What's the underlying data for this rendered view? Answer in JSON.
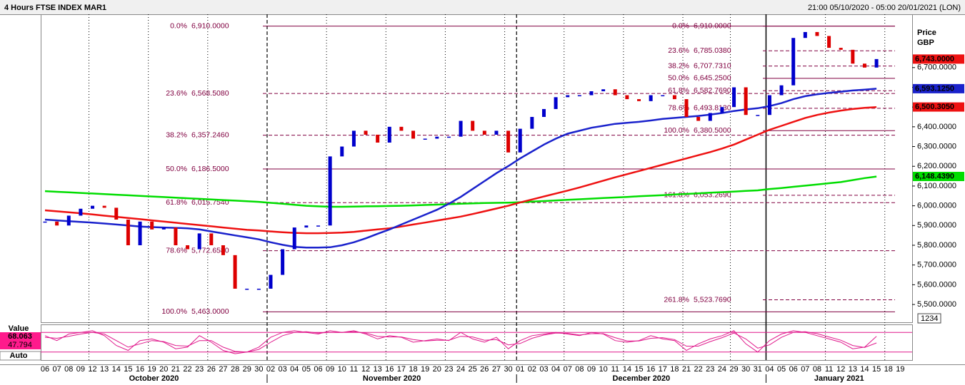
{
  "chart_data": {
    "type": "candlestick",
    "title": "4 Hours FTSE INDEX MAR1",
    "subtitle": "21:00 05/10/2020 - 05:00 20/01/2021 (LON)",
    "ylabel": [
      "Price",
      "GBP"
    ],
    "categories": [
      "06",
      "07",
      "08",
      "09",
      "12",
      "13",
      "14",
      "15",
      "16",
      "19",
      "20",
      "21",
      "22",
      "23",
      "26",
      "27",
      "28",
      "29",
      "30",
      "02",
      "03",
      "04",
      "05",
      "06",
      "09",
      "10",
      "11",
      "12",
      "13",
      "16",
      "17",
      "18",
      "19",
      "20",
      "23",
      "24",
      "25",
      "26",
      "27",
      "30",
      "01",
      "02",
      "03",
      "04",
      "07",
      "08",
      "09",
      "10",
      "11",
      "14",
      "15",
      "16",
      "17",
      "18",
      "21",
      "22",
      "23",
      "24",
      "29",
      "30",
      "31",
      "04",
      "05",
      "06",
      "07",
      "08",
      "11",
      "12",
      "13",
      "14",
      "15",
      "18",
      "19"
    ],
    "months": [
      "October 2020",
      "November 2020",
      "December 2020",
      "January 2021"
    ],
    "values": [
      5920,
      5900,
      5950,
      5985,
      6000,
      5990,
      5930,
      5800,
      5920,
      5880,
      5890,
      5800,
      5780,
      5860,
      5800,
      5750,
      5580,
      5580,
      5580,
      5650,
      5780,
      5890,
      5900,
      5900,
      6250,
      6300,
      6380,
      6360,
      6320,
      6400,
      6380,
      6340,
      6340,
      6350,
      6350,
      6430,
      6380,
      6360,
      6380,
      6270,
      6390,
      6450,
      6490,
      6550,
      6560,
      6560,
      6580,
      6590,
      6560,
      6540,
      6530,
      6560,
      6560,
      6540,
      6450,
      6430,
      6470,
      6500,
      6600,
      6460,
      6460,
      6560,
      6610,
      6850,
      6880,
      6860,
      6800,
      6790,
      6720,
      6700,
      6743,
      null,
      null
    ],
    "up_color": "#0000cc",
    "down_color": "#dd0000",
    "moving_averages": [
      {
        "color": "#00dd00",
        "values": [
          6074,
          6071,
          6068,
          6065,
          6062,
          6059,
          6056,
          6053,
          6050,
          6047,
          6044,
          6041,
          6038,
          6035,
          6032,
          6029,
          6026,
          6023,
          6020,
          6015,
          6010,
          6005,
          6000,
          5997,
          5995,
          5995,
          5996,
          5997,
          5998,
          5999,
          6000,
          6002,
          6004,
          6006,
          6008,
          6010,
          6012,
          6014,
          6015,
          6016,
          6018,
          6021,
          6024,
          6027,
          6030,
          6033,
          6036,
          6039,
          6042,
          6045,
          6048,
          6051,
          6054,
          6057,
          6060,
          6063,
          6066,
          6069,
          6072,
          6075,
          6078,
          6085,
          6090,
          6096,
          6102,
          6108,
          6114,
          6120,
          6130,
          6140,
          6148,
          null,
          null
        ]
      },
      {
        "color": "#ee1111",
        "values": [
          5977,
          5972,
          5967,
          5962,
          5956,
          5950,
          5944,
          5938,
          5932,
          5926,
          5920,
          5914,
          5908,
          5902,
          5896,
          5890,
          5884,
          5878,
          5875,
          5870,
          5866,
          5863,
          5861,
          5861,
          5862,
          5864,
          5868,
          5874,
          5880,
          5886,
          5895,
          5905,
          5915,
          5925,
          5935,
          5945,
          5958,
          5972,
          5986,
          6000,
          6017,
          6032,
          6047,
          6062,
          6077,
          6093,
          6110,
          6127,
          6144,
          6160,
          6176,
          6192,
          6208,
          6224,
          6240,
          6256,
          6272,
          6290,
          6310,
          6335,
          6360,
          6385,
          6405,
          6425,
          6445,
          6460,
          6472,
          6482,
          6490,
          6496,
          6500,
          null,
          null
        ]
      },
      {
        "color": "#1a22cc",
        "values": [
          5930,
          5926,
          5922,
          5918,
          5915,
          5910,
          5905,
          5900,
          5895,
          5892,
          5890,
          5888,
          5886,
          5880,
          5870,
          5860,
          5850,
          5840,
          5830,
          5815,
          5802,
          5792,
          5788,
          5788,
          5790,
          5800,
          5815,
          5835,
          5858,
          5880,
          5905,
          5930,
          5955,
          5980,
          6010,
          6045,
          6085,
          6125,
          6165,
          6201,
          6240,
          6275,
          6310,
          6340,
          6365,
          6380,
          6395,
          6405,
          6415,
          6420,
          6425,
          6432,
          6440,
          6445,
          6450,
          6455,
          6462,
          6470,
          6480,
          6488,
          6494,
          6505,
          6520,
          6540,
          6555,
          6565,
          6572,
          6578,
          6584,
          6588,
          6593,
          null,
          null
        ]
      }
    ],
    "fibonacci": [
      {
        "color": "#800040",
        "levels": [
          {
            "pct": "0.0%",
            "value": 6910,
            "label": "6,910.0000",
            "dashed": false
          },
          {
            "pct": "23.6%",
            "value": 6568.508,
            "label": "6,568.5080",
            "dashed": true
          },
          {
            "pct": "38.2%",
            "value": 6357.246,
            "label": "6,357.2460",
            "dashed": true
          },
          {
            "pct": "50.0%",
            "value": 6186.5,
            "label": "6,186.5000",
            "dashed": false
          },
          {
            "pct": "61.8%",
            "value": 6015.754,
            "label": "6,015.7540",
            "dashed": true
          },
          {
            "pct": "78.6%",
            "value": 5772.658,
            "label": "5,772.6580",
            "dashed": true
          },
          {
            "pct": "100.0%",
            "value": 5463,
            "label": "5,463.0000",
            "dashed": false
          }
        ]
      },
      {
        "color": "#800040",
        "levels": [
          {
            "pct": "0.0%",
            "value": 6910,
            "label": "6,910.0000",
            "dashed": false
          },
          {
            "pct": "23.6%",
            "value": 6785.038,
            "label": "6,785.0380",
            "dashed": true
          },
          {
            "pct": "38.2%",
            "value": 6707.731,
            "label": "6,707.7310",
            "dashed": true
          },
          {
            "pct": "50.0%",
            "value": 6645.25,
            "label": "6,645.2500",
            "dashed": false
          },
          {
            "pct": "61.8%",
            "value": 6582.769,
            "label": "6,582.7690",
            "dashed": true
          },
          {
            "pct": "78.6%",
            "value": 6493.813,
            "label": "6,493.8130",
            "dashed": true
          },
          {
            "pct": "100.0%",
            "value": 6380.5,
            "label": "6,380.5000",
            "dashed": false
          },
          {
            "pct": "161.8%",
            "value": 6053.269,
            "label": "6,053.2690",
            "dashed": true
          },
          {
            "pct": "261.8%",
            "value": 5523.769,
            "label": "5,523.7690",
            "dashed": true
          }
        ]
      }
    ],
    "price_tags": [
      {
        "value": 6743,
        "label": "6,743.0000",
        "color": "#ee1111",
        "text_color": "#000000"
      },
      {
        "value": 6593.125,
        "label": "6,593.1250",
        "color": "#1a22cc",
        "text_color": "#ffffff"
      },
      {
        "value": 6500.305,
        "label": "6,500.3050",
        "color": "#ee1111",
        "text_color": "#000000"
      },
      {
        "value": 6148.439,
        "label": "6,148.4390",
        "color": "#00dd00",
        "text_color": "#000000"
      }
    ],
    "ylim": [
      5410,
      6970
    ],
    "yticks": [
      {
        "value": 5500,
        "label": "5,500.0000"
      },
      {
        "value": 5600,
        "label": "5,600.0000"
      },
      {
        "value": 5700,
        "label": "5,700.0000"
      },
      {
        "value": 5800,
        "label": "5,800.0000"
      },
      {
        "value": 5900,
        "label": "5,900.0000"
      },
      {
        "value": 6000,
        "label": "6,000.0000"
      },
      {
        "value": 6100,
        "label": "6,100.0000"
      },
      {
        "value": 6200,
        "label": "6,200.0000"
      },
      {
        "value": 6300,
        "label": "6,300.0000"
      },
      {
        "value": 6400,
        "label": "6,400.0000"
      },
      {
        "value": 6500,
        "label": "6,500.0000"
      },
      {
        "value": 6600,
        "label": "6,600.0000"
      },
      {
        "value": 6700,
        "label": "6,700.0000"
      }
    ],
    "badge": "1234",
    "oscillator": {
      "title": "Value",
      "mode": "Auto",
      "ylim": [
        0,
        100
      ],
      "levels": [
        80,
        20
      ],
      "color": "#e0198c",
      "series": [
        {
          "values": [
            70,
            55,
            75,
            80,
            85,
            70,
            40,
            25,
            55,
            60,
            50,
            30,
            35,
            70,
            50,
            25,
            15,
            20,
            35,
            65,
            80,
            85,
            80,
            75,
            85,
            80,
            85,
            75,
            60,
            70,
            65,
            50,
            55,
            60,
            55,
            80,
            60,
            50,
            65,
            30,
            55,
            70,
            75,
            80,
            75,
            70,
            80,
            75,
            55,
            50,
            55,
            70,
            60,
            55,
            25,
            45,
            60,
            70,
            85,
            45,
            20,
            55,
            75,
            85,
            80,
            70,
            60,
            50,
            30,
            35,
            68.063,
            null,
            null
          ]
        },
        {
          "values": [
            65,
            62,
            68,
            75,
            80,
            75,
            55,
            35,
            45,
            55,
            52,
            40,
            38,
            55,
            55,
            35,
            22,
            20,
            28,
            50,
            70,
            80,
            82,
            78,
            80,
            80,
            82,
            78,
            68,
            66,
            66,
            58,
            54,
            56,
            56,
            68,
            66,
            56,
            58,
            42,
            46,
            62,
            72,
            78,
            77,
            72,
            76,
            76,
            64,
            54,
            54,
            62,
            64,
            58,
            38,
            38,
            52,
            64,
            78,
            60,
            32,
            42,
            65,
            80,
            82,
            76,
            66,
            56,
            40,
            34,
            47.794,
            null,
            null
          ]
        }
      ]
    }
  }
}
